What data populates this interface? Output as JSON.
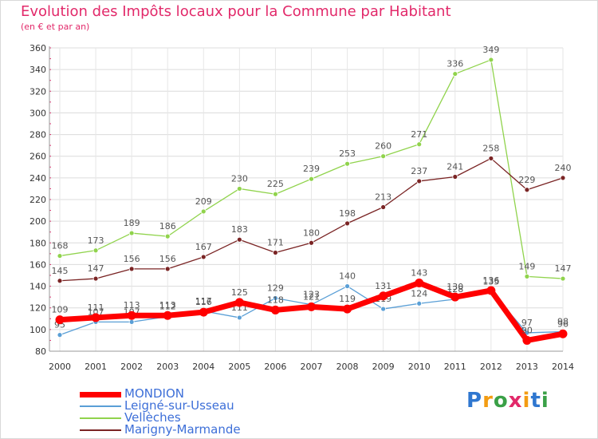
{
  "title": "Evolution des Impôts locaux pour la Commune par Habitant",
  "subtitle": "(en € et par an)",
  "logo": {
    "letters": [
      "P",
      "r",
      "o",
      "x",
      "i",
      "t",
      "i"
    ],
    "colors": [
      "#2f77d0",
      "#f39c12",
      "#3aa047",
      "#e2296a",
      "#f39c12",
      "#2f77d0",
      "#3aa047"
    ]
  },
  "chart_data": {
    "type": "line",
    "x": [
      2000,
      2001,
      2002,
      2003,
      2004,
      2005,
      2006,
      2007,
      2008,
      2009,
      2010,
      2011,
      2012,
      2013,
      2014
    ],
    "ylim": [
      80,
      360
    ],
    "yticks": [
      80,
      100,
      120,
      140,
      160,
      180,
      200,
      220,
      240,
      260,
      280,
      300,
      320,
      340,
      360
    ],
    "grid": true,
    "legend_position": "bottom-left",
    "series": [
      {
        "name": "Vellèches",
        "color": "#90d34c",
        "values": [
          168,
          173,
          189,
          186,
          209,
          230,
          225,
          239,
          253,
          260,
          271,
          336,
          349,
          149,
          147
        ]
      },
      {
        "name": "Marigny-Marmande",
        "color": "#7a2424",
        "values": [
          145,
          147,
          156,
          156,
          167,
          183,
          171,
          180,
          198,
          213,
          237,
          241,
          258,
          229,
          240
        ]
      },
      {
        "name": "Leigné-sur-Usseau",
        "color": "#5a9fd6",
        "values": [
          95,
          107,
          107,
          112,
          117,
          111,
          129,
          123,
          140,
          119,
          124,
          128,
          135,
          97,
          98
        ]
      },
      {
        "name": "MONDION",
        "color": "#ff0000",
        "values": [
          109,
          111,
          113,
          113,
          116,
          125,
          118,
          121,
          119,
          131,
          143,
          130,
          136,
          90,
          96
        ]
      }
    ],
    "legend_order": [
      "MONDION",
      "Leigné-sur-Usseau",
      "Vellèches",
      "Marigny-Marmande"
    ]
  }
}
